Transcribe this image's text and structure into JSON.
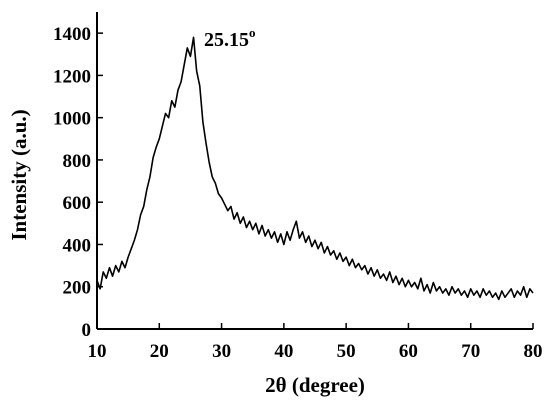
{
  "chart_data": {
    "type": "line",
    "xlabel": "2θ (degree)",
    "ylabel": "Intensity (a.u.)",
    "annotation": "25.15",
    "annotation_sup": "o",
    "color": "#000000",
    "xlim": [
      10,
      80
    ],
    "xticks": [
      10,
      20,
      30,
      40,
      50,
      60,
      70,
      80
    ],
    "ylim": [
      0,
      1500
    ],
    "yticks": [
      0,
      200,
      400,
      600,
      800,
      1000,
      1200,
      1400
    ],
    "x": [
      10,
      10.5,
      11,
      11.5,
      12,
      12.5,
      13,
      13.5,
      14,
      14.5,
      15,
      15.5,
      16,
      16.5,
      17,
      17.5,
      18,
      18.5,
      19,
      19.5,
      20,
      20.5,
      21,
      21.5,
      22,
      22.5,
      23,
      23.5,
      24,
      24.5,
      25,
      25.5,
      26,
      26.5,
      27,
      27.5,
      28,
      28.5,
      29,
      29.5,
      30,
      30.5,
      31,
      31.5,
      32,
      32.5,
      33,
      33.5,
      34,
      34.5,
      35,
      35.5,
      36,
      36.5,
      37,
      37.5,
      38,
      38.5,
      39,
      39.5,
      40,
      40.5,
      41,
      41.5,
      42,
      42.5,
      43,
      43.5,
      44,
      44.5,
      45,
      45.5,
      46,
      46.5,
      47,
      47.5,
      48,
      48.5,
      49,
      49.5,
      50,
      50.5,
      51,
      51.5,
      52,
      52.5,
      53,
      53.5,
      54,
      54.5,
      55,
      55.5,
      56,
      56.5,
      57,
      57.5,
      58,
      58.5,
      59,
      59.5,
      60,
      60.5,
      61,
      61.5,
      62,
      62.5,
      63,
      63.5,
      64,
      64.5,
      65,
      65.5,
      66,
      66.5,
      67,
      67.5,
      68,
      68.5,
      69,
      69.5,
      70,
      70.5,
      71,
      71.5,
      72,
      72.5,
      73,
      73.5,
      74,
      74.5,
      75,
      75.5,
      76,
      76.5,
      77,
      77.5,
      78,
      78.5,
      79,
      79.5,
      80
    ],
    "values": [
      230,
      190,
      270,
      240,
      290,
      250,
      300,
      270,
      320,
      290,
      340,
      380,
      420,
      470,
      540,
      580,
      660,
      720,
      810,
      860,
      900,
      960,
      1020,
      1000,
      1080,
      1050,
      1130,
      1170,
      1250,
      1330,
      1290,
      1380,
      1220,
      1150,
      980,
      880,
      790,
      720,
      690,
      640,
      620,
      590,
      560,
      580,
      520,
      550,
      500,
      530,
      480,
      510,
      470,
      500,
      450,
      490,
      440,
      470,
      430,
      460,
      410,
      450,
      400,
      460,
      420,
      470,
      510,
      430,
      460,
      410,
      440,
      390,
      420,
      380,
      410,
      360,
      390,
      350,
      370,
      330,
      360,
      320,
      340,
      300,
      330,
      290,
      310,
      280,
      300,
      260,
      290,
      250,
      280,
      240,
      260,
      230,
      270,
      220,
      250,
      210,
      240,
      200,
      230,
      200,
      220,
      190,
      240,
      180,
      210,
      170,
      220,
      180,
      200,
      170,
      190,
      160,
      200,
      170,
      190,
      160,
      180,
      150,
      190,
      160,
      180,
      150,
      190,
      160,
      180,
      150,
      170,
      140,
      180,
      150,
      170,
      190,
      150,
      180,
      160,
      200,
      150,
      190,
      170
    ]
  }
}
